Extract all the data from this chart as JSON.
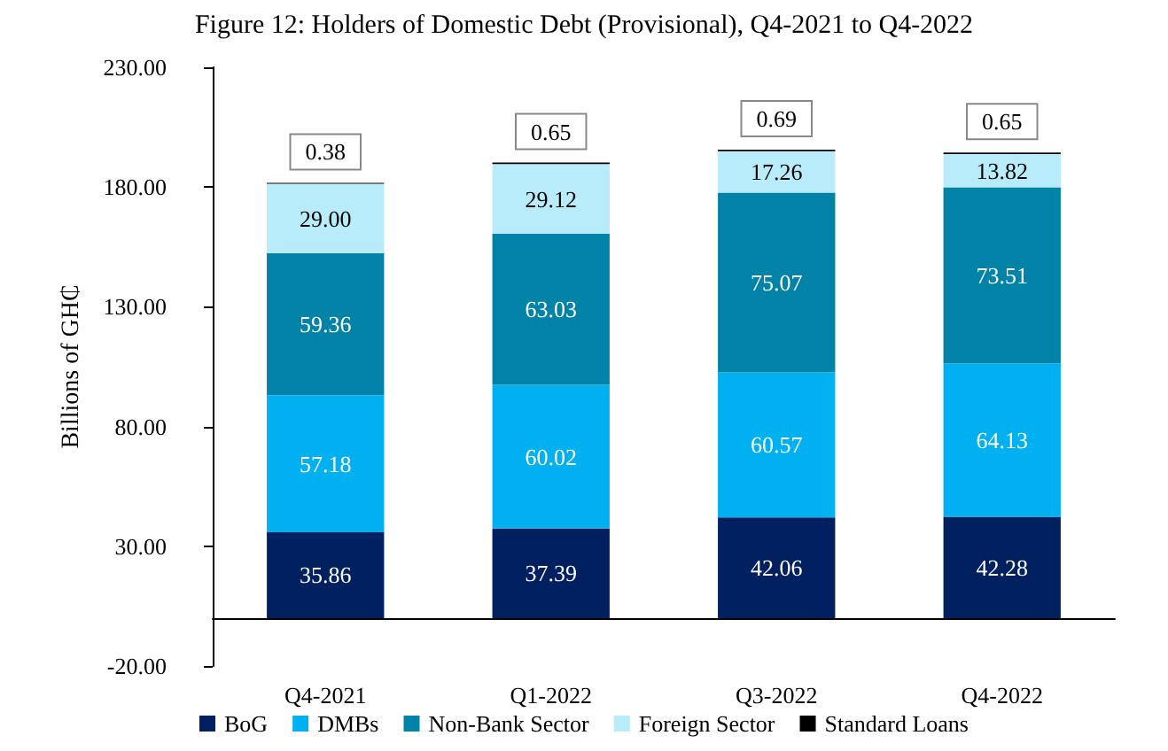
{
  "chart_data": {
    "type": "bar",
    "title": "Figure 12: Holders of Domestic Debt (Provisional), Q4-2021 to Q4-2022",
    "ylabel": "Billions of GH₵",
    "categories": [
      "Q4-2021",
      "Q1-2022",
      "Q3-2022",
      "Q4-2022"
    ],
    "stacked": true,
    "legend": "bottom",
    "grid": false,
    "ylim": [
      -20,
      230
    ],
    "yticks": [
      {
        "value": -20,
        "label": "-20.00"
      },
      {
        "value": 30,
        "label": "30.00"
      },
      {
        "value": 80,
        "label": "80.00"
      },
      {
        "value": 130,
        "label": "130.00"
      },
      {
        "value": 180,
        "label": "180.00"
      },
      {
        "value": 230,
        "label": "230.00"
      }
    ],
    "series": [
      {
        "name": "BoG",
        "color": "#002060",
        "values": [
          35.86,
          37.39,
          42.06,
          42.28
        ],
        "value_labels": [
          "35.86",
          "37.39",
          "42.06",
          "42.28"
        ]
      },
      {
        "name": "DMBs",
        "color": "#00b0f0",
        "values": [
          57.18,
          60.02,
          60.57,
          64.13
        ],
        "value_labels": [
          "57.18",
          "60.02",
          "60.57",
          "64.13"
        ]
      },
      {
        "name": "Non-Bank Sector",
        "color": "#0083a6",
        "values": [
          59.36,
          63.03,
          75.07,
          73.51
        ],
        "value_labels": [
          "59.36",
          "63.03",
          "75.07",
          "73.51"
        ]
      },
      {
        "name": "Foreign Sector",
        "color": "#b8ecfa",
        "values": [
          29.0,
          29.12,
          17.26,
          13.82
        ],
        "value_labels": [
          "29.00",
          "29.12",
          "17.26",
          "13.82"
        ]
      },
      {
        "name": "Standard Loans",
        "color": "#000000",
        "values": [
          0.38,
          0.65,
          0.69,
          0.65
        ],
        "value_labels": [
          "0.38",
          "0.65",
          "0.69",
          "0.65"
        ]
      }
    ]
  }
}
